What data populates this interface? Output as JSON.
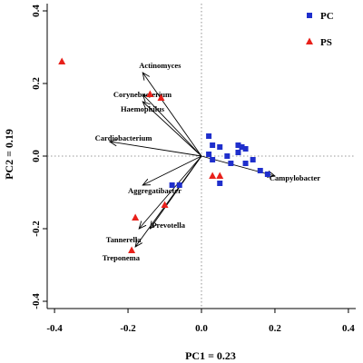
{
  "chart_data": {
    "type": "scatter",
    "title": "",
    "xlabel": "PC1 = 0.23",
    "ylabel": "PC2 = 0.19",
    "xlim": [
      -0.42,
      0.42
    ],
    "ylim": [
      -0.42,
      0.42
    ],
    "xticks": [
      -0.4,
      -0.2,
      0.0,
      0.2,
      0.4
    ],
    "yticks": [
      -0.4,
      -0.2,
      0.0,
      0.2,
      0.4
    ],
    "xtick_labels": [
      "-0.4",
      "-0.2",
      "0.0",
      "0.2",
      "0.4"
    ],
    "ytick_labels": [
      "-0.4",
      "-0.2",
      "0.0",
      "0.2",
      "0.4"
    ],
    "grid": false,
    "legend_position": "top-right",
    "series": [
      {
        "name": "PC",
        "marker": "square",
        "color": "#1f2fcc",
        "x": [
          0.02,
          0.03,
          0.05,
          0.07,
          0.1,
          0.11,
          0.12,
          0.1,
          0.08,
          0.12,
          0.14,
          0.16,
          0.18,
          0.03,
          0.05,
          0.02,
          -0.06,
          -0.08
        ],
        "y": [
          0.055,
          0.03,
          0.025,
          0.0,
          0.03,
          0.025,
          0.02,
          0.01,
          -0.02,
          -0.02,
          -0.01,
          -0.04,
          -0.05,
          -0.01,
          -0.075,
          0.005,
          -0.08,
          -0.08
        ]
      },
      {
        "name": "PS",
        "marker": "triangle",
        "color": "#e8201a",
        "x": [
          -0.38,
          -0.14,
          -0.11,
          0.03,
          0.05,
          -0.18,
          -0.1,
          -0.19
        ],
        "y": [
          0.26,
          0.17,
          0.16,
          -0.055,
          -0.055,
          -0.17,
          -0.135,
          -0.26
        ]
      }
    ],
    "vectors": [
      {
        "label": "Actinomyces",
        "x": -0.16,
        "y": 0.23,
        "label_x": -0.17,
        "label_y": 0.25
      },
      {
        "label": "Corynebacterium",
        "x": -0.16,
        "y": 0.17,
        "label_x": -0.24,
        "label_y": 0.17
      },
      {
        "label": "Haemophilus",
        "x": -0.16,
        "y": 0.15,
        "label_x": -0.22,
        "label_y": 0.13
      },
      {
        "label": "Cardiobacterium",
        "x": -0.25,
        "y": 0.04,
        "label_x": -0.29,
        "label_y": 0.05
      },
      {
        "label": "Aggregatibacter",
        "x": -0.16,
        "y": -0.08,
        "label_x": -0.2,
        "label_y": -0.095
      },
      {
        "label": "Prevotella",
        "x": -0.14,
        "y": -0.2,
        "label_x": -0.135,
        "label_y": -0.19
      },
      {
        "label": "Tannerella",
        "x": -0.17,
        "y": -0.2,
        "label_x": -0.26,
        "label_y": -0.23
      },
      {
        "label": "Treponema",
        "x": -0.18,
        "y": -0.25,
        "label_x": -0.27,
        "label_y": -0.28
      },
      {
        "label": "Campylobacter",
        "x": 0.2,
        "y": -0.055,
        "label_x": 0.185,
        "label_y": -0.06
      }
    ]
  }
}
